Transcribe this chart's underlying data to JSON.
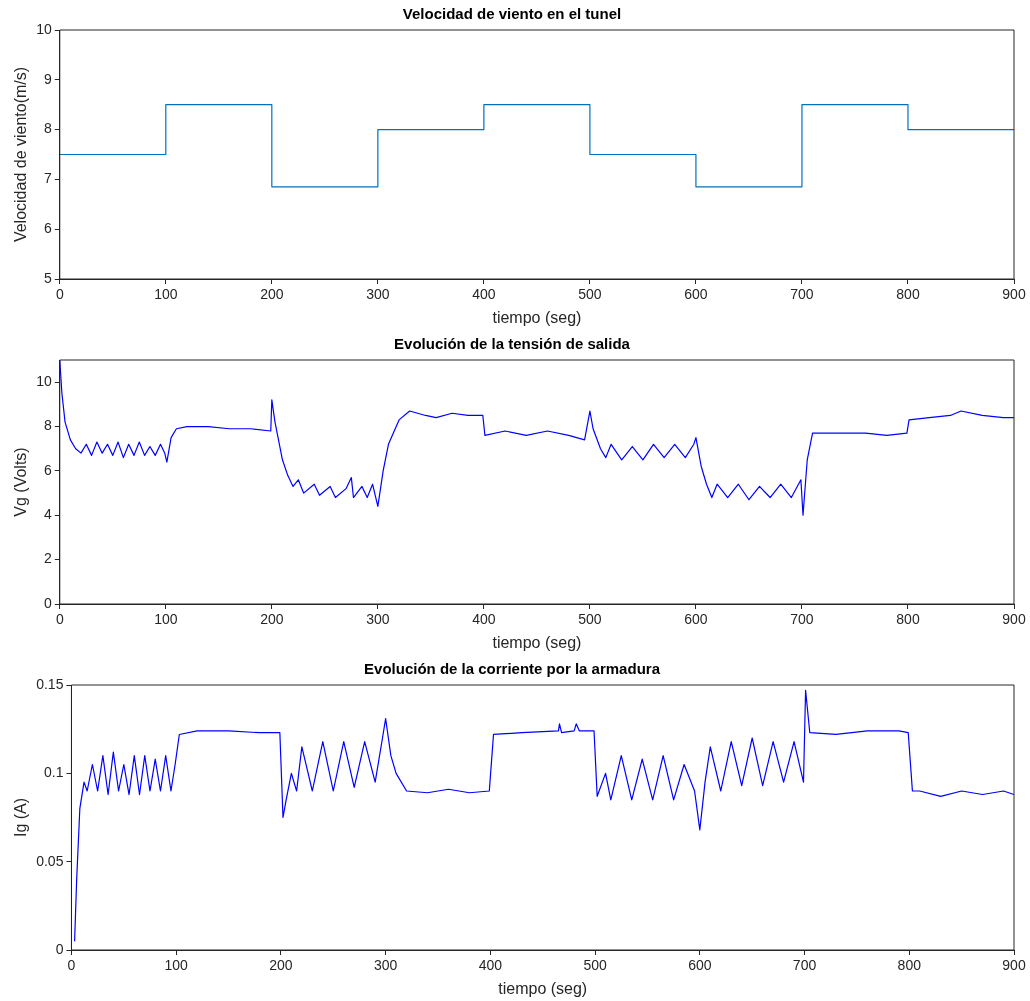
{
  "chart_data": [
    {
      "type": "step",
      "title": "Velocidad de viento en el tunel",
      "xlabel": "tiempo (seg)",
      "ylabel": "Velocidad de viento(m/s)",
      "xlim": [
        0,
        900
      ],
      "xticks": [
        0,
        100,
        200,
        300,
        400,
        500,
        600,
        700,
        800,
        900
      ],
      "ylim": [
        5,
        10
      ],
      "yticks": [
        5,
        6,
        7,
        8,
        9,
        10
      ],
      "grid": false,
      "legend": false,
      "x": [
        0,
        100,
        200,
        300,
        400,
        500,
        600,
        700,
        800,
        900
      ],
      "series": [
        {
          "color": "#0072bd",
          "values": [
            7.5,
            8.5,
            6.85,
            8,
            8.5,
            7.5,
            6.85,
            8.5,
            8,
            8
          ]
        }
      ]
    },
    {
      "type": "line",
      "title": "Evolución de la tensión de salida",
      "xlabel": "tiempo (seg)",
      "ylabel": "Vg (Volts)",
      "xlim": [
        0,
        900
      ],
      "xticks": [
        0,
        100,
        200,
        300,
        400,
        500,
        600,
        700,
        800,
        900
      ],
      "ylim": [
        0,
        11
      ],
      "yticks": [
        0,
        2,
        4,
        6,
        8,
        10
      ],
      "grid": false,
      "legend": false,
      "x": [
        0,
        2,
        5,
        10,
        15,
        20,
        25,
        30,
        35,
        40,
        45,
        50,
        55,
        60,
        65,
        70,
        75,
        80,
        85,
        90,
        95,
        99,
        101,
        105,
        110,
        120,
        140,
        160,
        180,
        199,
        200,
        203,
        210,
        215,
        220,
        225,
        230,
        240,
        245,
        255,
        260,
        270,
        275,
        277,
        285,
        290,
        295,
        300,
        305,
        310,
        320,
        330,
        345,
        355,
        370,
        385,
        399,
        401,
        420,
        440,
        460,
        480,
        495,
        500,
        503,
        510,
        515,
        520,
        530,
        540,
        550,
        560,
        570,
        580,
        590,
        598,
        600,
        605,
        610,
        615,
        620,
        630,
        640,
        650,
        660,
        670,
        680,
        690,
        699,
        701,
        705,
        710,
        730,
        760,
        780,
        799,
        801,
        820,
        840,
        850,
        870,
        890,
        900
      ],
      "series": [
        {
          "color": "#0000ff",
          "values": [
            11,
            9.5,
            8.2,
            7.4,
            7.0,
            6.8,
            7.2,
            6.7,
            7.3,
            6.8,
            7.2,
            6.7,
            7.3,
            6.6,
            7.2,
            6.7,
            7.3,
            6.7,
            7.1,
            6.7,
            7.2,
            6.8,
            6.4,
            7.5,
            7.9,
            8.0,
            8.0,
            7.9,
            7.9,
            7.8,
            9.2,
            8.2,
            6.5,
            5.8,
            5.3,
            5.6,
            5.0,
            5.4,
            4.9,
            5.3,
            4.8,
            5.2,
            5.7,
            4.8,
            5.3,
            4.8,
            5.4,
            4.4,
            6.0,
            7.2,
            8.3,
            8.7,
            8.5,
            8.4,
            8.6,
            8.5,
            8.5,
            7.6,
            7.8,
            7.6,
            7.8,
            7.6,
            7.4,
            8.7,
            7.9,
            7.0,
            6.6,
            7.2,
            6.5,
            7.1,
            6.5,
            7.2,
            6.6,
            7.2,
            6.6,
            7.2,
            7.5,
            6.2,
            5.4,
            4.8,
            5.4,
            4.8,
            5.4,
            4.7,
            5.3,
            4.8,
            5.4,
            4.8,
            5.6,
            4.0,
            6.5,
            7.7,
            7.7,
            7.7,
            7.6,
            7.7,
            8.3,
            8.4,
            8.5,
            8.7,
            8.5,
            8.4,
            8.4
          ]
        }
      ]
    },
    {
      "type": "line",
      "title": "Evolución de la corriente por la armadura",
      "xlabel": "tiempo (seg)",
      "ylabel": "Ig (A)",
      "xlim": [
        0,
        900
      ],
      "xticks": [
        0,
        100,
        200,
        300,
        400,
        500,
        600,
        700,
        800,
        900
      ],
      "ylim": [
        0,
        0.15
      ],
      "yticks": [
        0,
        0.05,
        0.1,
        0.15
      ],
      "grid": false,
      "legend": false,
      "x": [
        3,
        5,
        8,
        12,
        15,
        20,
        25,
        30,
        35,
        40,
        45,
        50,
        55,
        60,
        65,
        70,
        75,
        80,
        85,
        90,
        95,
        99,
        103,
        120,
        150,
        180,
        199,
        202,
        205,
        210,
        215,
        220,
        230,
        240,
        250,
        260,
        270,
        280,
        290,
        297,
        300,
        305,
        310,
        320,
        340,
        360,
        380,
        399,
        403,
        430,
        465,
        466,
        468,
        480,
        482,
        485,
        499,
        502,
        510,
        515,
        525,
        535,
        545,
        555,
        565,
        575,
        585,
        595,
        600,
        605,
        610,
        620,
        630,
        640,
        650,
        660,
        670,
        680,
        690,
        699,
        701,
        705,
        730,
        760,
        790,
        799,
        803,
        810,
        830,
        850,
        870,
        890,
        900
      ],
      "series": [
        {
          "color": "#0000ff",
          "values": [
            0.005,
            0.04,
            0.08,
            0.095,
            0.09,
            0.105,
            0.09,
            0.11,
            0.088,
            0.112,
            0.09,
            0.105,
            0.088,
            0.11,
            0.088,
            0.11,
            0.09,
            0.108,
            0.09,
            0.11,
            0.09,
            0.105,
            0.122,
            0.124,
            0.124,
            0.123,
            0.123,
            0.075,
            0.085,
            0.1,
            0.09,
            0.115,
            0.09,
            0.118,
            0.09,
            0.118,
            0.092,
            0.118,
            0.095,
            0.12,
            0.131,
            0.11,
            0.1,
            0.09,
            0.089,
            0.091,
            0.089,
            0.09,
            0.122,
            0.123,
            0.124,
            0.128,
            0.123,
            0.124,
            0.128,
            0.124,
            0.124,
            0.087,
            0.1,
            0.085,
            0.11,
            0.085,
            0.108,
            0.085,
            0.11,
            0.085,
            0.105,
            0.09,
            0.068,
            0.095,
            0.115,
            0.09,
            0.118,
            0.093,
            0.12,
            0.093,
            0.118,
            0.095,
            0.118,
            0.095,
            0.147,
            0.123,
            0.122,
            0.124,
            0.124,
            0.123,
            0.09,
            0.09,
            0.087,
            0.09,
            0.088,
            0.09,
            0.088
          ]
        }
      ]
    }
  ]
}
